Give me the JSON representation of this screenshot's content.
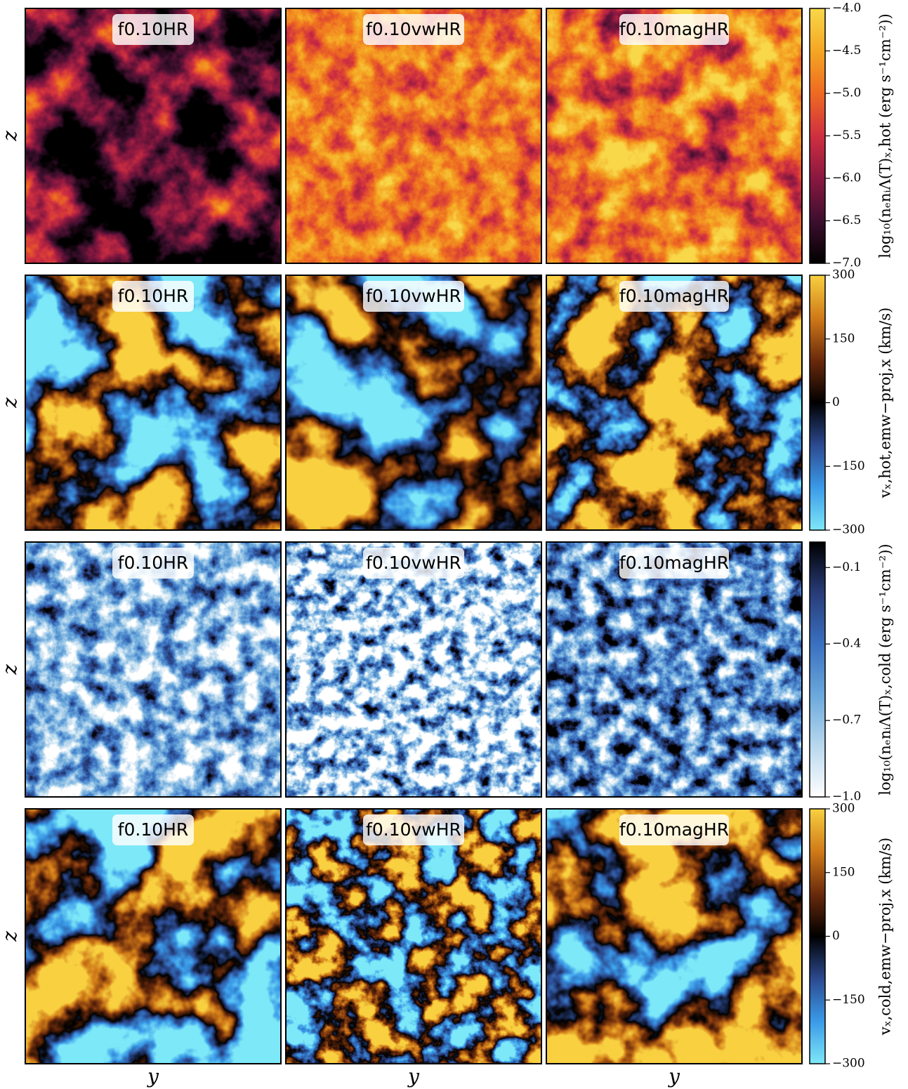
{
  "figure": {
    "rows": [
      {
        "ylabel": "z",
        "panels": [
          "f0.10HR",
          "f0.10vwHR",
          "f0.10magHR"
        ],
        "colorbar": {
          "label": "log₁₀(nₑnᵢΛ(T)ₓ,hot (erg s⁻¹cm⁻²))",
          "lim": [
            -7.0,
            -4.0
          ],
          "ticks": [
            {
              "value": -4.0,
              "label": "−4.0"
            },
            {
              "value": -4.5,
              "label": "−4.5"
            },
            {
              "value": -5.0,
              "label": "−5.0"
            },
            {
              "value": -5.5,
              "label": "−5.5"
            },
            {
              "value": -6.0,
              "label": "−6.0"
            },
            {
              "value": -6.5,
              "label": "−6.5"
            },
            {
              "value": -7.0,
              "label": "−7.0"
            }
          ],
          "colors": [
            "#000000",
            "#3d0f2e",
            "#8a1840",
            "#d02f40",
            "#ee6a22",
            "#f5a623",
            "#f8d84a"
          ]
        }
      },
      {
        "ylabel": "z",
        "panels": [
          "f0.10HR",
          "f0.10vwHR",
          "f0.10magHR"
        ],
        "colorbar": {
          "label": "vₓ,hot,emw−proj,x (km/s)",
          "lim": [
            -300,
            300
          ],
          "ticks": [
            300,
            150,
            0,
            {
              "value": -150,
              "label": "−150"
            },
            {
              "value": -300,
              "label": "−300"
            }
          ],
          "colors": [
            "#7ee8f8",
            "#3a9ae8",
            "#2c4a90",
            "#000000",
            "#6a2a0c",
            "#d07a18",
            "#f8d040"
          ]
        }
      },
      {
        "ylabel": "z",
        "panels": [
          "f0.10HR",
          "f0.10vwHR",
          "f0.10magHR"
        ],
        "colorbar": {
          "label": "log₁₀(nₑnᵢΛ(T)ₓ,cold (erg s⁻¹cm⁻²))",
          "lim": [
            -1.0,
            0.0
          ],
          "ticks": [
            {
              "value": -0.1,
              "label": "−0.1"
            },
            {
              "value": -0.4,
              "label": "−0.4"
            },
            {
              "value": -0.7,
              "label": "−0.7"
            },
            {
              "value": -1.0,
              "label": "−1.0"
            }
          ],
          "colors": [
            "#ffffff",
            "#b8d8ee",
            "#6aa8dc",
            "#3a70c0",
            "#283c78",
            "#000000"
          ]
        }
      },
      {
        "ylabel": "z",
        "panels": [
          "f0.10HR",
          "f0.10vwHR",
          "f0.10magHR"
        ],
        "colorbar": {
          "label": "vₓ,cold,emw−proj,x (km/s)",
          "lim": [
            -300,
            300
          ],
          "ticks": [
            300,
            150,
            0,
            {
              "value": -150,
              "label": "−150"
            },
            {
              "value": -300,
              "label": "−300"
            }
          ],
          "colors": [
            "#7ee8f8",
            "#3a9ae8",
            "#2c4a90",
            "#000000",
            "#6a2a0c",
            "#d07a18",
            "#f8d040"
          ]
        }
      }
    ],
    "xlabels": [
      "y",
      "y",
      "y"
    ]
  }
}
